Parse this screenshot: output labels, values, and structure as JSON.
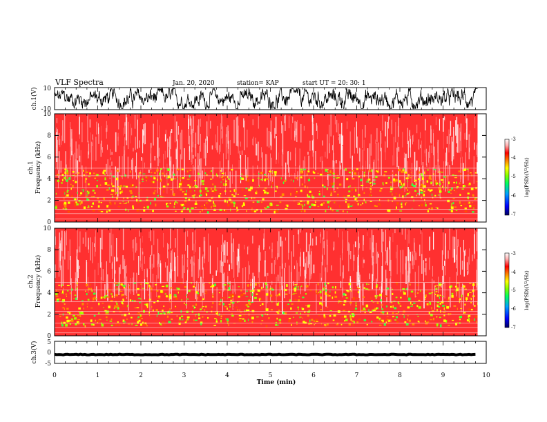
{
  "header": {
    "title": "VLF Spectra",
    "date": "Jan. 20, 2020",
    "station": "station= KAP",
    "start": "start  UT =   20: 30: 1"
  },
  "colors": {
    "ink": "#000000",
    "spectrogram_base": "#ff2020",
    "colormap": [
      "#000080",
      "#0000ff",
      "#00a0ff",
      "#00ff80",
      "#60ff00",
      "#ffff00",
      "#ff8000",
      "#ff0000",
      "#ffc0c0",
      "#ffffff"
    ]
  },
  "chart_data": [
    {
      "type": "line",
      "ylabel": "ch.1(V)",
      "ylim": [
        -10,
        10
      ],
      "yticks": [
        "10",
        "-10"
      ],
      "xlim": [
        0,
        10
      ],
      "note_series": "noisy waveform fluctuating within roughly -8 to 8 V for the full 9.8 min record"
    },
    {
      "type": "heatmap",
      "ylabel": "ch.1\nFrequency (kHz)",
      "ylim": [
        0,
        10
      ],
      "yticks": [
        "0",
        "2",
        "4",
        "6",
        "8",
        "10"
      ],
      "xlim": [
        0,
        9.8
      ],
      "colorbar": {
        "label": "log(PSD)(V²/Hz)",
        "range": [
          -7,
          -3
        ],
        "ticks": [
          "-3",
          "-4",
          "-5",
          "-6",
          "-7"
        ]
      }
    },
    {
      "type": "heatmap",
      "ylabel": "ch.2\nFrequency (kHz)",
      "ylim": [
        0,
        10
      ],
      "yticks": [
        "0",
        "2",
        "4",
        "6",
        "8",
        "10"
      ],
      "xlim": [
        0,
        9.8
      ],
      "colorbar": {
        "label": "log(PSD)(V²/Hz)",
        "range": [
          -7,
          -3
        ],
        "ticks": [
          "-3",
          "-4",
          "-5",
          "-6",
          "-7"
        ]
      }
    },
    {
      "type": "line",
      "ylabel": "ch.3(V)",
      "ylim": [
        -5,
        5
      ],
      "yticks": [
        "5",
        "0",
        "-5"
      ],
      "xlim": [
        0,
        10
      ],
      "xlabel": "Time (min)",
      "xticks": [
        "0",
        "1",
        "2",
        "3",
        "4",
        "5",
        "6",
        "7",
        "8",
        "9",
        "10"
      ],
      "note_series": "nearly flat thick trace at about -1 V"
    }
  ]
}
